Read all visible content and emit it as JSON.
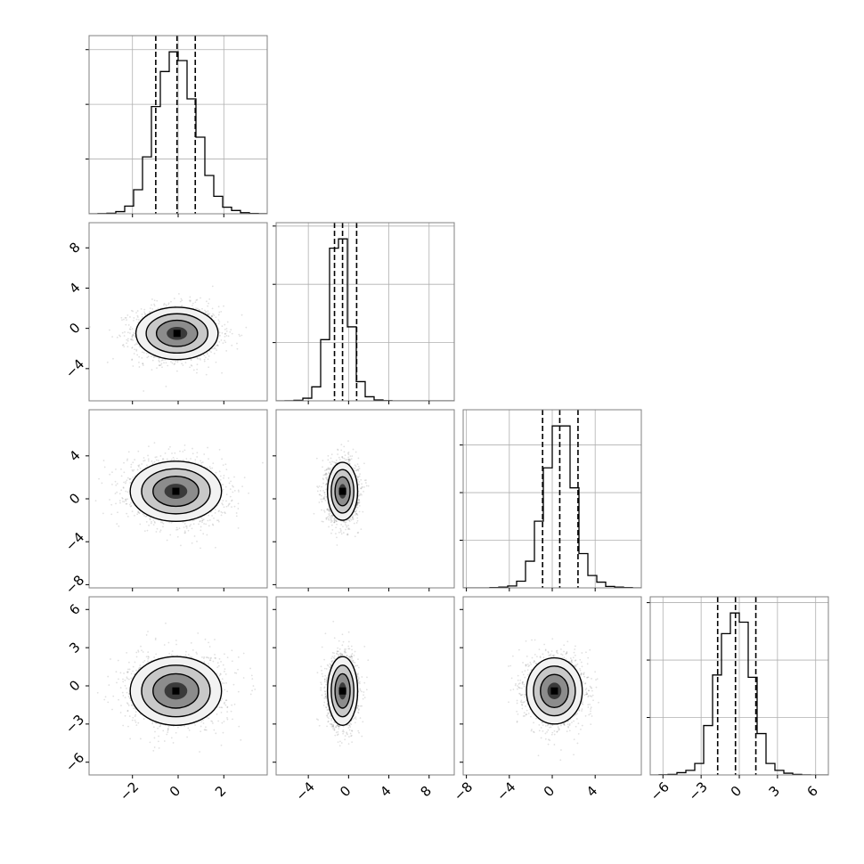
{
  "colors": {
    "line": "#000000",
    "grid": "#b0b0b0",
    "points": "#000000",
    "background": "#ffffff"
  },
  "chart_data": {
    "type": "corner",
    "parameters": 4,
    "grid": true,
    "quantiles": [
      0.16,
      0.5,
      0.84
    ],
    "axes": [
      {
        "range": [
          -3.9,
          3.9
        ],
        "ticks": [
          -2,
          0,
          2
        ],
        "tick_labels": [
          "−2",
          "0",
          "2"
        ],
        "quantile_values": [
          -0.98,
          -0.05,
          0.75
        ]
      },
      {
        "range": [
          -7.2,
          10.5
        ],
        "ticks": [
          -4,
          0,
          4,
          8
        ],
        "tick_labels": [
          "−4",
          "0",
          "4",
          "8"
        ],
        "quantile_values": [
          -1.4,
          -0.6,
          0.8
        ]
      },
      {
        "range": [
          -8.3,
          8.3
        ],
        "ticks": [
          -8,
          -4,
          0,
          4
        ],
        "tick_labels": [
          "−8",
          "−4",
          "0",
          "4"
        ],
        "quantile_values": [
          -0.9,
          0.7,
          2.4
        ]
      },
      {
        "range": [
          -7.0,
          7.0
        ],
        "ticks": [
          -6,
          -3,
          0,
          3,
          6
        ],
        "tick_labels": [
          "−6",
          "−3",
          "0",
          "3",
          "6"
        ],
        "quantile_values": [
          -1.7,
          -0.3,
          1.3
        ]
      }
    ],
    "histograms": [
      {
        "param": 0,
        "bin_edges_start": -3.9,
        "bin_width": 0.39,
        "counts": [
          0,
          2,
          5,
          20,
          70,
          220,
          520,
          980,
          1300,
          1480,
          1400,
          1050,
          700,
          350,
          160,
          60,
          30,
          10,
          3,
          1
        ]
      },
      {
        "param": 1,
        "bin_edges_start": -7.2,
        "bin_width": 0.885,
        "counts": [
          0,
          2,
          10,
          45,
          240,
          1050,
          2620,
          2780,
          1270,
          330,
          70,
          15,
          3,
          0,
          0,
          0,
          0,
          0,
          0,
          0
        ]
      },
      {
        "param": 2,
        "bin_edges_start": -8.3,
        "bin_width": 0.83,
        "counts": [
          0,
          0,
          0,
          3,
          8,
          20,
          70,
          280,
          700,
          1260,
          1700,
          1700,
          1050,
          360,
          130,
          60,
          15,
          8,
          3,
          0
        ]
      },
      {
        "param": 3,
        "bin_edges_start": -7.0,
        "bin_width": 0.7,
        "counts": [
          0,
          2,
          5,
          20,
          40,
          100,
          430,
          870,
          1230,
          1410,
          1330,
          850,
          360,
          100,
          40,
          15,
          5,
          1,
          0,
          0
        ]
      }
    ],
    "pairs": [
      {
        "x": 0,
        "y": 1,
        "mean": [
          -0.05,
          -0.5
        ],
        "sd": [
          0.9,
          1.3
        ],
        "rho": 0.0
      },
      {
        "x": 0,
        "y": 2,
        "mean": [
          -0.1,
          0.7
        ],
        "sd": [
          1.0,
          1.4
        ],
        "rho": -0.1
      },
      {
        "x": 1,
        "y": 2,
        "mean": [
          -0.6,
          0.7
        ],
        "sd": [
          0.75,
          1.35
        ],
        "rho": 0.0
      },
      {
        "x": 0,
        "y": 3,
        "mean": [
          -0.1,
          -0.4
        ],
        "sd": [
          1.0,
          1.35
        ],
        "rho": 0.05
      },
      {
        "x": 1,
        "y": 3,
        "mean": [
          -0.6,
          -0.4
        ],
        "sd": [
          0.75,
          1.35
        ],
        "rho": 0.0
      },
      {
        "x": 2,
        "y": 3,
        "mean": [
          0.2,
          -0.4
        ],
        "sd": [
          1.3,
          1.3
        ],
        "rho": 0.0
      }
    ]
  }
}
